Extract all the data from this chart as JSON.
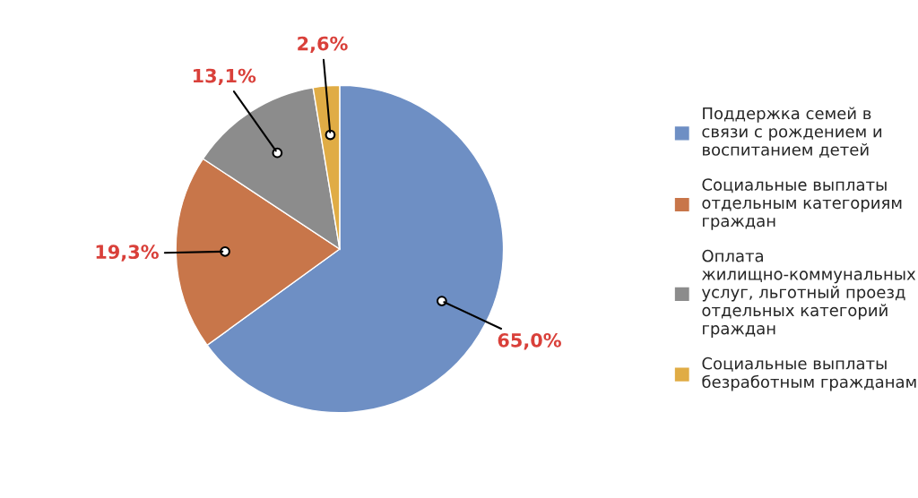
{
  "chart_data": {
    "type": "pie",
    "categories": [
      "Поддержка семей в связи с рождением и воспитанием детей",
      "Социальные выплаты отдельным категориям граждан",
      "Оплата жилищно-коммунальных услуг, льготный проезд отдельных категорий граждан",
      "Социальные выплаты безработным гражданам"
    ],
    "values": [
      65.0,
      19.3,
      13.1,
      2.6
    ],
    "value_labels": [
      "65,0%",
      "19,3%",
      "13,1%",
      "2,6%"
    ],
    "colors": [
      "#6e8fc4",
      "#c8764a",
      "#8c8c8c",
      "#e0ac45"
    ],
    "legend": "right"
  }
}
